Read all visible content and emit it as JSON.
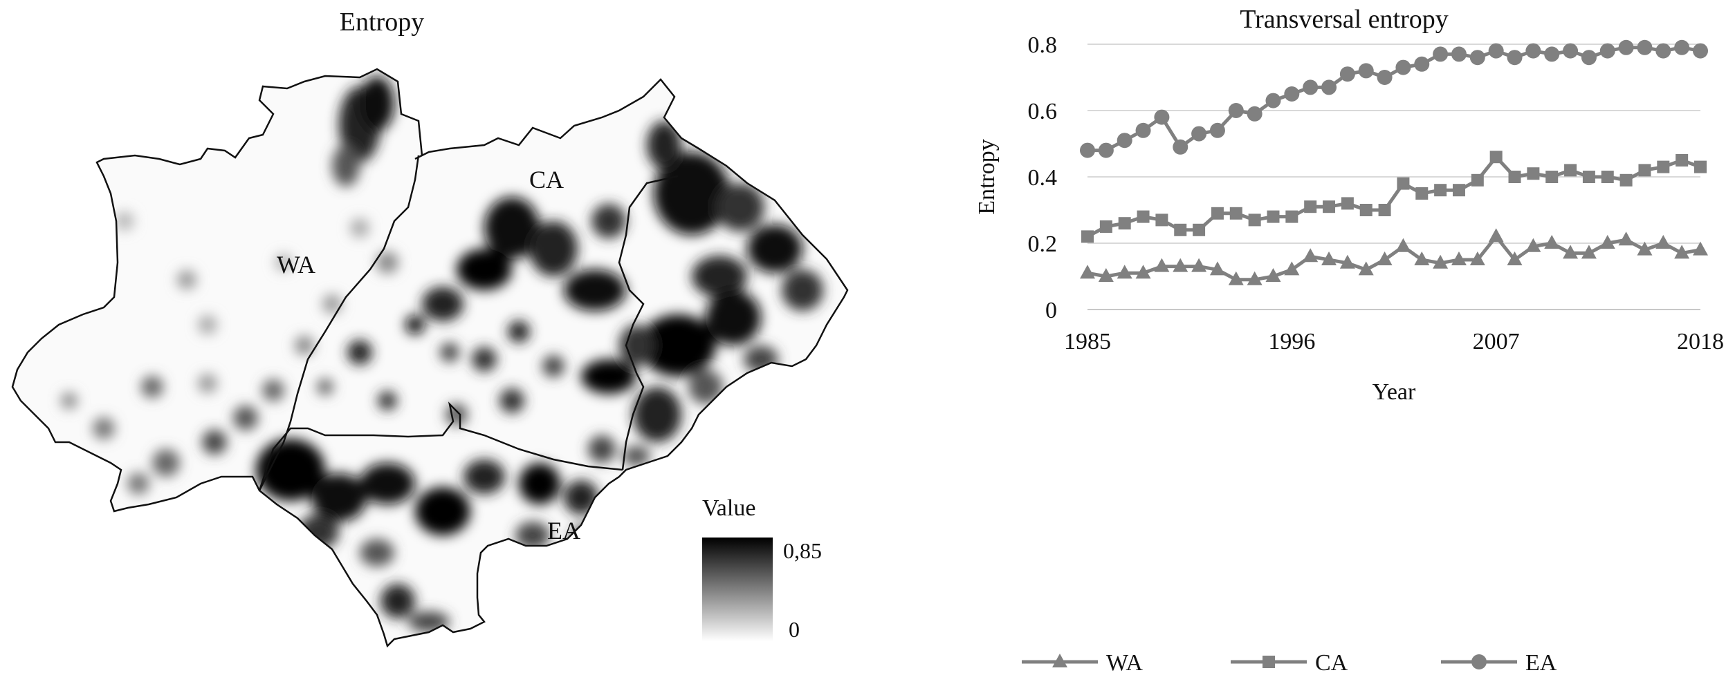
{
  "map": {
    "title": "Entropy",
    "regions": [
      "WA",
      "CA",
      "EA"
    ],
    "legend": {
      "title": "Value",
      "max_label": "0,85",
      "min_label": "0"
    },
    "value_range": [
      0,
      0.85
    ]
  },
  "chart_data": {
    "type": "line",
    "title": "Transversal entropy",
    "xlabel": "Year",
    "ylabel": "Entropy",
    "x": [
      1985,
      1986,
      1987,
      1988,
      1989,
      1990,
      1991,
      1992,
      1993,
      1994,
      1995,
      1996,
      1997,
      1998,
      1999,
      2000,
      2001,
      2002,
      2003,
      2004,
      2005,
      2006,
      2007,
      2008,
      2009,
      2010,
      2011,
      2012,
      2013,
      2014,
      2015,
      2016,
      2017,
      2018
    ],
    "xticks": [
      "1985",
      "1996",
      "2007",
      "2018"
    ],
    "xlim": [
      1985,
      2018
    ],
    "yticks": [
      "0",
      "0.2",
      "0.4",
      "0.6",
      "0.8"
    ],
    "ylim": [
      0,
      0.8
    ],
    "grid": true,
    "legend_position": "bottom",
    "color": "#808080",
    "series": [
      {
        "name": "WA",
        "marker": "triangle",
        "values": [
          0.11,
          0.1,
          0.11,
          0.11,
          0.13,
          0.13,
          0.13,
          0.12,
          0.09,
          0.09,
          0.1,
          0.12,
          0.16,
          0.15,
          0.14,
          0.12,
          0.15,
          0.19,
          0.15,
          0.14,
          0.15,
          0.15,
          0.22,
          0.15,
          0.19,
          0.2,
          0.17,
          0.17,
          0.2,
          0.21,
          0.18,
          0.2,
          0.17,
          0.18
        ]
      },
      {
        "name": "CA",
        "marker": "square",
        "values": [
          0.22,
          0.25,
          0.26,
          0.28,
          0.27,
          0.24,
          0.24,
          0.29,
          0.29,
          0.27,
          0.28,
          0.28,
          0.31,
          0.31,
          0.32,
          0.3,
          0.3,
          0.38,
          0.35,
          0.36,
          0.36,
          0.39,
          0.46,
          0.4,
          0.41,
          0.4,
          0.42,
          0.4,
          0.4,
          0.39,
          0.42,
          0.43,
          0.45,
          0.43
        ]
      },
      {
        "name": "EA",
        "marker": "circle",
        "values": [
          0.48,
          0.48,
          0.51,
          0.54,
          0.58,
          0.49,
          0.53,
          0.54,
          0.6,
          0.59,
          0.63,
          0.65,
          0.67,
          0.67,
          0.71,
          0.72,
          0.7,
          0.73,
          0.74,
          0.77,
          0.77,
          0.76,
          0.78,
          0.76,
          0.78,
          0.77,
          0.78,
          0.76,
          0.78,
          0.79,
          0.79,
          0.78,
          0.79,
          0.78
        ]
      }
    ]
  }
}
